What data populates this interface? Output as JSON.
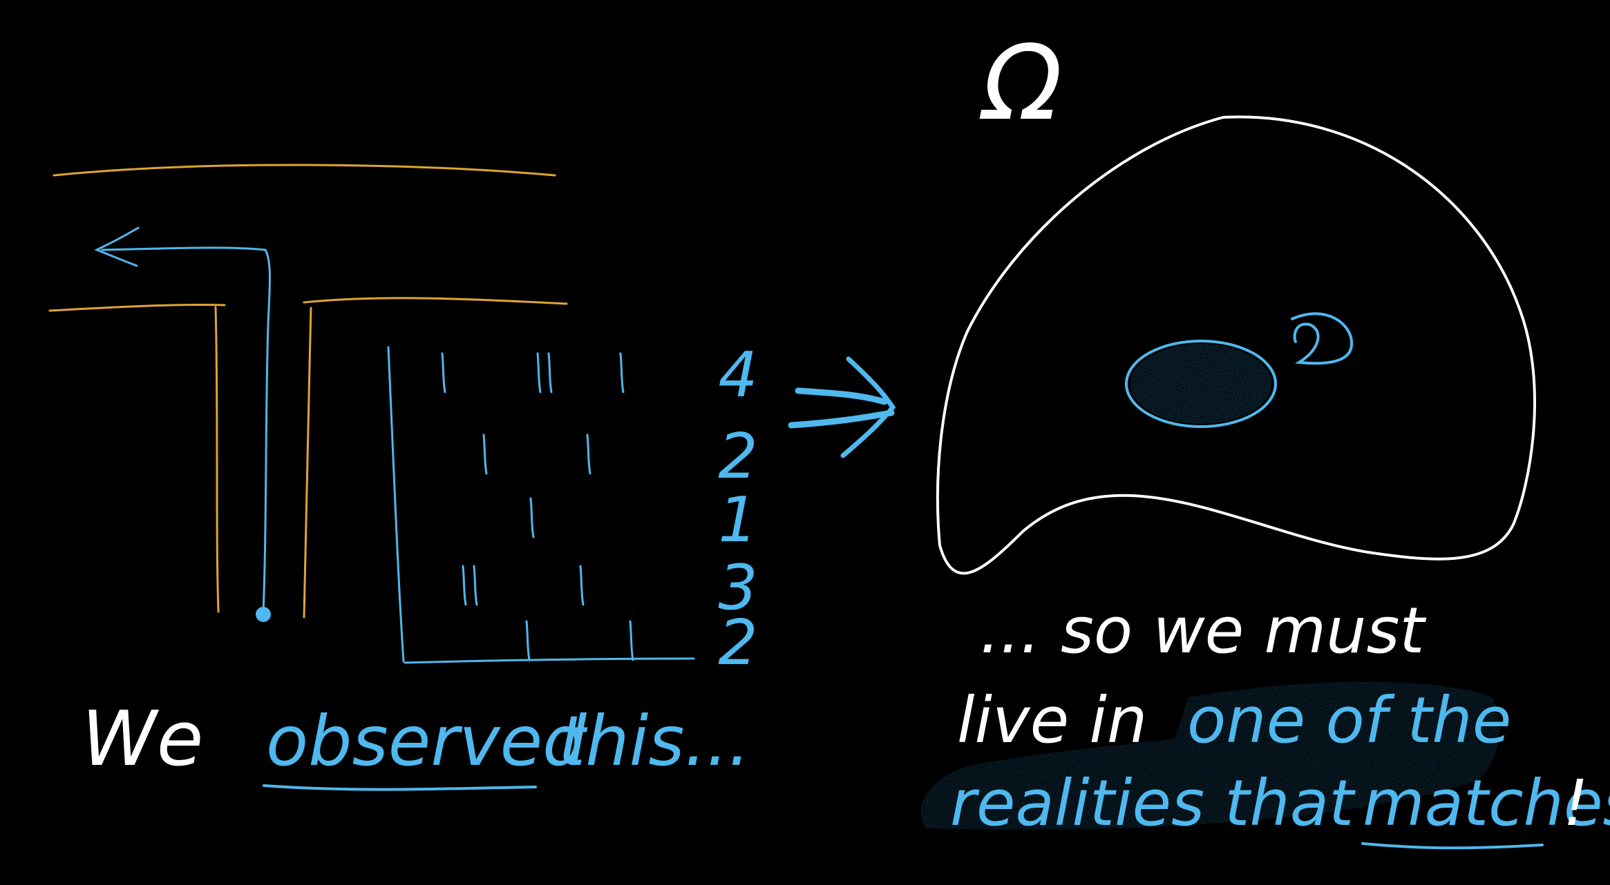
{
  "colors": {
    "background": "#000000",
    "white": "#ffffff",
    "blue": "#4fb8ee",
    "orange": "#e0a630",
    "highlight": "#1e5c80"
  },
  "omega_label": "Ω",
  "left_caption": {
    "we": "We",
    "observed": "observed",
    "this": "this...",
    "underlined_word": "observed"
  },
  "table": {
    "row_totals": [
      "4",
      "2",
      "1",
      "3",
      "2"
    ],
    "rows": [
      [
        "|",
        "||",
        "|"
      ],
      [
        "|",
        "|"
      ],
      [
        "|"
      ],
      [
        "||",
        "|"
      ],
      [
        "|",
        "|"
      ]
    ]
  },
  "right_caption": {
    "line1": "... so we must",
    "line2_white": "live in",
    "line2_blue": "one of the",
    "line3_a": "realities that",
    "line3_b": "matches",
    "line3_end": "!"
  }
}
